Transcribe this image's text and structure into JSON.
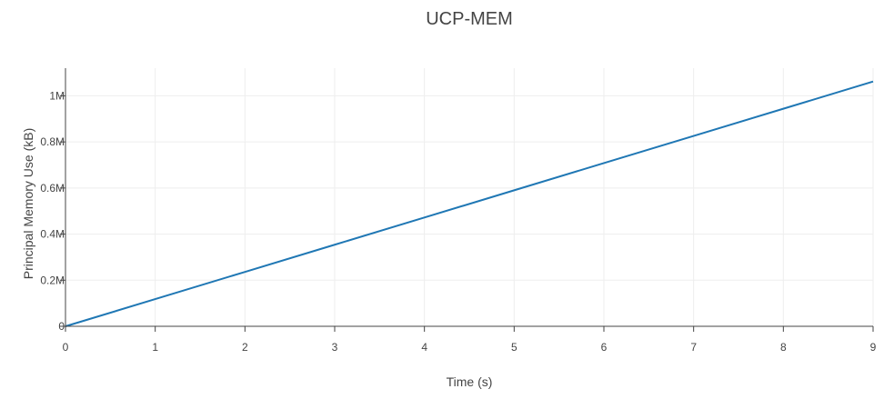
{
  "chart_data": {
    "type": "line",
    "title": "UCP-MEM",
    "xlabel": "Time (s)",
    "ylabel": "Principal Memory Use (kB)",
    "xlim": [
      0,
      9
    ],
    "ylim": [
      0,
      1120000
    ],
    "x_ticks": [
      0,
      1,
      2,
      3,
      4,
      5,
      6,
      7,
      8,
      9
    ],
    "x_tick_labels": [
      "0",
      "1",
      "2",
      "3",
      "4",
      "5",
      "6",
      "7",
      "8",
      "9"
    ],
    "y_ticks": [
      0,
      200000,
      400000,
      600000,
      800000,
      1000000
    ],
    "y_tick_labels": [
      "0",
      "0.2M",
      "0.4M",
      "0.6M",
      "0.8M",
      "1M"
    ],
    "grid": true,
    "legend": "none",
    "series": [
      {
        "color": "#1f77b4",
        "x": [
          0,
          1,
          2,
          3,
          4,
          5,
          6,
          7,
          8,
          9
        ],
        "y": [
          0,
          118000,
          236000,
          354000,
          472000,
          590000,
          708000,
          826000,
          944000,
          1062000
        ]
      }
    ]
  }
}
